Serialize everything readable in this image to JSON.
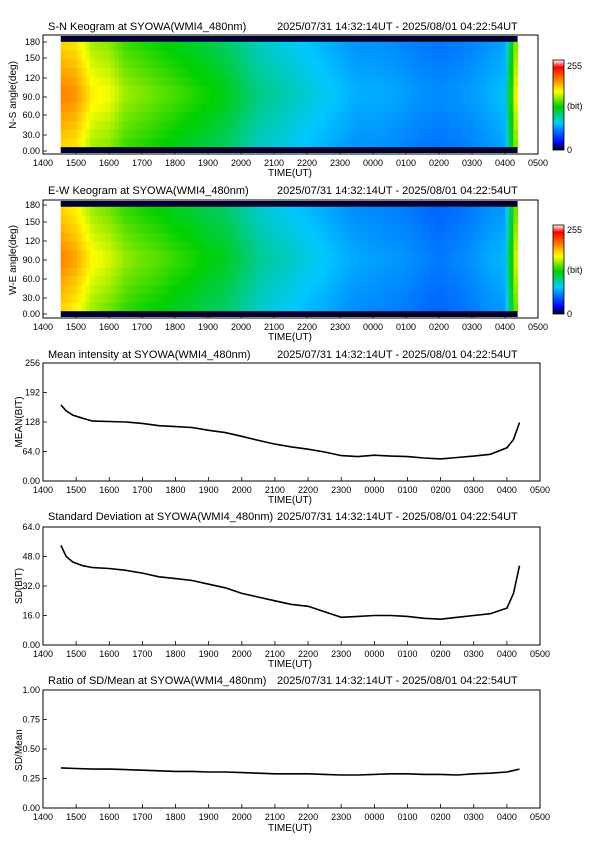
{
  "colors": {
    "axis": "#000000",
    "colormap": [
      "#000000",
      "#0000ff",
      "#00c8ff",
      "#00d000",
      "#ffff00",
      "#ff8000",
      "#ff0000",
      "#ffffff"
    ]
  },
  "panels": {
    "sn": {
      "title": "S-N Keogram at SYOWA(WMI4_480nm)",
      "time": "2025/07/31 14:32:14UT - 2025/08/01 04:22:54UT",
      "ylabel": "N-S angle(deg)",
      "xlabel": "TIME(UT)",
      "yticks": [
        "0.00",
        "30.0",
        "60.0",
        "90.0",
        "120",
        "150",
        "180"
      ],
      "colorbar": {
        "max": "255",
        "unit": "(bit)",
        "min": "0"
      }
    },
    "ew": {
      "title": "E-W Keogram at SYOWA(WMI4_480nm)",
      "time": "2025/07/31 14:32:14UT - 2025/08/01 04:22:54UT",
      "ylabel": "W-E angle(deg)",
      "xlabel": "TIME(UT)",
      "yticks": [
        "0.00",
        "30.0",
        "60.0",
        "90.0",
        "120",
        "150",
        "180"
      ],
      "colorbar": {
        "max": "255",
        "unit": "(bit)",
        "min": "0"
      }
    },
    "mean": {
      "title": "Mean intensity at SYOWA(WMI4_480nm)",
      "time": "2025/07/31 14:32:14UT - 2025/08/01 04:22:54UT",
      "ylabel": "MEAN(BIT)",
      "xlabel": "TIME(UT)",
      "yticks": [
        "0.00",
        "64.0",
        "128",
        "192",
        "256"
      ]
    },
    "sd": {
      "title": "Standard Deviation at SYOWA(WMI4_480nm)",
      "time": "2025/07/31 14:32:14UT - 2025/08/01 04:22:54UT",
      "ylabel": "SD(BIT)",
      "xlabel": "TIME(UT)",
      "yticks": [
        "0.00",
        "16.0",
        "32.0",
        "48.0",
        "64.0"
      ]
    },
    "ratio": {
      "title": "Ratio of SD/Mean at SYOWA(WMI4_480nm)",
      "time": "2025/07/31 14:32:14UT - 2025/08/01 04:22:54UT",
      "ylabel": "SD/Mean",
      "xlabel": "TIME(UT)",
      "yticks": [
        "0.00",
        "0.25",
        "0.50",
        "0.75",
        "1.00"
      ]
    }
  },
  "xticks": [
    "1400",
    "1500",
    "1600",
    "1700",
    "1800",
    "1900",
    "2000",
    "2100",
    "2200",
    "2300",
    "0000",
    "0100",
    "0200",
    "0300",
    "0400",
    "0500"
  ],
  "chart_data": [
    {
      "type": "heatmap",
      "title": "S-N Keogram at SYOWA(WMI4_480nm)",
      "xlabel": "TIME(UT)",
      "ylabel": "N-S angle(deg)",
      "xlim": [
        14.0,
        29.0
      ],
      "ylim": [
        0,
        180
      ],
      "colorbar_range": [
        0,
        255
      ],
      "colorbar_unit": "(bit)",
      "data_time_range": [
        14.537,
        28.382
      ],
      "x": [
        14.54,
        15.0,
        15.5,
        16.0,
        16.5,
        17.0,
        17.5,
        18.0,
        18.5,
        19.0,
        19.5,
        20.0,
        20.5,
        21.0,
        21.5,
        22.0,
        22.5,
        23.0,
        23.5,
        24.0,
        24.5,
        25.0,
        25.5,
        26.0,
        26.5,
        27.0,
        27.5,
        28.0,
        28.38
      ],
      "values": [
        200,
        195,
        170,
        165,
        150,
        145,
        140,
        135,
        130,
        125,
        120,
        110,
        100,
        95,
        90,
        85,
        80,
        75,
        70,
        70,
        68,
        65,
        62,
        60,
        62,
        65,
        70,
        75,
        180
      ]
    },
    {
      "type": "heatmap",
      "title": "E-W Keogram at SYOWA(WMI4_480nm)",
      "xlabel": "TIME(UT)",
      "ylabel": "W-E angle(deg)",
      "xlim": [
        14.0,
        29.0
      ],
      "ylim": [
        0,
        180
      ],
      "colorbar_range": [
        0,
        255
      ],
      "colorbar_unit": "(bit)",
      "data_time_range": [
        14.537,
        28.382
      ],
      "x": [
        14.54,
        15.0,
        15.5,
        16.0,
        16.5,
        17.0,
        17.5,
        18.0,
        18.5,
        19.0,
        19.5,
        20.0,
        20.5,
        21.0,
        21.5,
        22.0,
        22.5,
        23.0,
        23.5,
        24.0,
        24.5,
        25.0,
        25.5,
        26.0,
        26.5,
        27.0,
        27.5,
        28.0,
        28.38
      ],
      "values": [
        200,
        190,
        168,
        160,
        148,
        142,
        138,
        132,
        128,
        122,
        118,
        108,
        98,
        92,
        88,
        82,
        78,
        72,
        68,
        66,
        64,
        62,
        58,
        55,
        58,
        62,
        68,
        72,
        175
      ]
    },
    {
      "type": "line",
      "title": "Mean intensity at SYOWA(WMI4_480nm)",
      "xlabel": "TIME(UT)",
      "ylabel": "MEAN(BIT)",
      "xlim": [
        14.0,
        29.0
      ],
      "ylim": [
        0,
        256
      ],
      "x": [
        14.54,
        14.7,
        14.9,
        15.2,
        15.5,
        16.0,
        16.5,
        17.0,
        17.5,
        18.0,
        18.5,
        19.0,
        19.5,
        20.0,
        20.5,
        21.0,
        21.5,
        22.0,
        22.5,
        23.0,
        23.5,
        24.0,
        24.5,
        25.0,
        25.5,
        26.0,
        26.5,
        27.0,
        27.5,
        28.0,
        28.2,
        28.38
      ],
      "values": [
        165,
        152,
        143,
        136,
        130,
        129,
        128,
        125,
        120,
        118,
        116,
        110,
        105,
        97,
        88,
        80,
        74,
        69,
        63,
        55,
        53,
        56,
        54,
        53,
        50,
        48,
        51,
        54,
        58,
        72,
        90,
        127
      ]
    },
    {
      "type": "line",
      "title": "Standard Deviation at SYOWA(WMI4_480nm)",
      "xlabel": "TIME(UT)",
      "ylabel": "SD(BIT)",
      "xlim": [
        14.0,
        29.0
      ],
      "ylim": [
        0,
        64
      ],
      "x": [
        14.54,
        14.7,
        14.9,
        15.2,
        15.5,
        16.0,
        16.5,
        17.0,
        17.5,
        18.0,
        18.5,
        19.0,
        19.5,
        20.0,
        20.5,
        21.0,
        21.5,
        22.0,
        22.5,
        23.0,
        23.5,
        24.0,
        24.5,
        25.0,
        25.5,
        26.0,
        26.5,
        27.0,
        27.5,
        28.0,
        28.2,
        28.38
      ],
      "values": [
        54,
        48,
        45,
        43,
        42,
        41.5,
        40.5,
        39,
        37,
        36,
        35,
        33,
        31,
        28,
        26,
        24,
        22,
        21,
        18,
        15,
        15.5,
        16,
        16,
        15.5,
        14.5,
        14,
        15,
        16,
        17,
        20,
        28,
        43
      ]
    },
    {
      "type": "line",
      "title": "Ratio of SD/Mean at SYOWA(WMI4_480nm)",
      "xlabel": "TIME(UT)",
      "ylabel": "SD/Mean",
      "xlim": [
        14.0,
        29.0
      ],
      "ylim": [
        0,
        1.0
      ],
      "x": [
        14.54,
        15.0,
        15.5,
        16.0,
        16.5,
        17.0,
        17.5,
        18.0,
        18.5,
        19.0,
        19.5,
        20.0,
        20.5,
        21.0,
        21.5,
        22.0,
        22.5,
        23.0,
        23.5,
        24.0,
        24.5,
        25.0,
        25.5,
        26.0,
        26.5,
        27.0,
        27.5,
        28.0,
        28.38
      ],
      "values": [
        0.34,
        0.335,
        0.33,
        0.33,
        0.325,
        0.32,
        0.315,
        0.31,
        0.31,
        0.305,
        0.305,
        0.3,
        0.295,
        0.29,
        0.29,
        0.29,
        0.285,
        0.28,
        0.28,
        0.285,
        0.29,
        0.29,
        0.285,
        0.285,
        0.28,
        0.29,
        0.295,
        0.305,
        0.33
      ]
    }
  ]
}
